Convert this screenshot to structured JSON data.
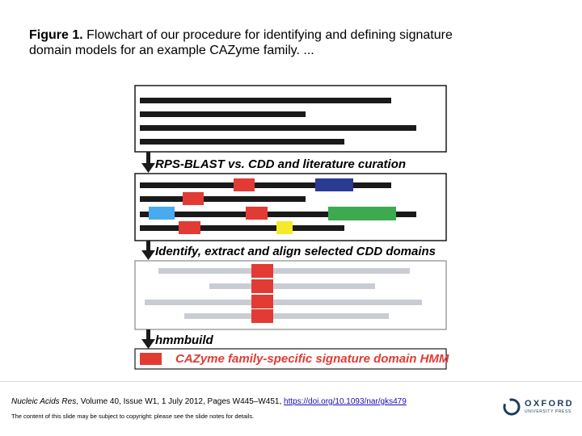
{
  "caption": {
    "label": "Figure 1.",
    "text": "Flowchart of our procedure for identifying and defining signature domain models for an example CAZyme family. ..."
  },
  "diagram": {
    "stage1_label": "RPS-BLAST vs. CDD and literature curation",
    "stage2_label": "Identify, extract and align selected CDD domains",
    "stage3_label": "hmmbuild",
    "final_label": "CAZyme family-specific signature domain HMM",
    "colors": {
      "sequence": "#1a1a1a",
      "aligned_sequence": "#c9cdd3",
      "domain_red": "#e23b33",
      "domain_blue": "#2b3a93",
      "domain_lightblue": "#4aaaf0",
      "domain_green": "#3daa4f",
      "domain_yellow": "#f5ea2a",
      "final_text": "#e23b33"
    }
  },
  "footer": {
    "journal": "Nucleic Acids Res",
    "citation": ", Volume 40, Issue W1, 1 July 2012, Pages W445–W451, ",
    "doi": "https://doi.org/10.1093/nar/gks479",
    "copyright": "The content of this slide may be subject to copyright: please see the slide notes for details.",
    "logo_main": "OXFORD",
    "logo_sub": "UNIVERSITY PRESS"
  }
}
